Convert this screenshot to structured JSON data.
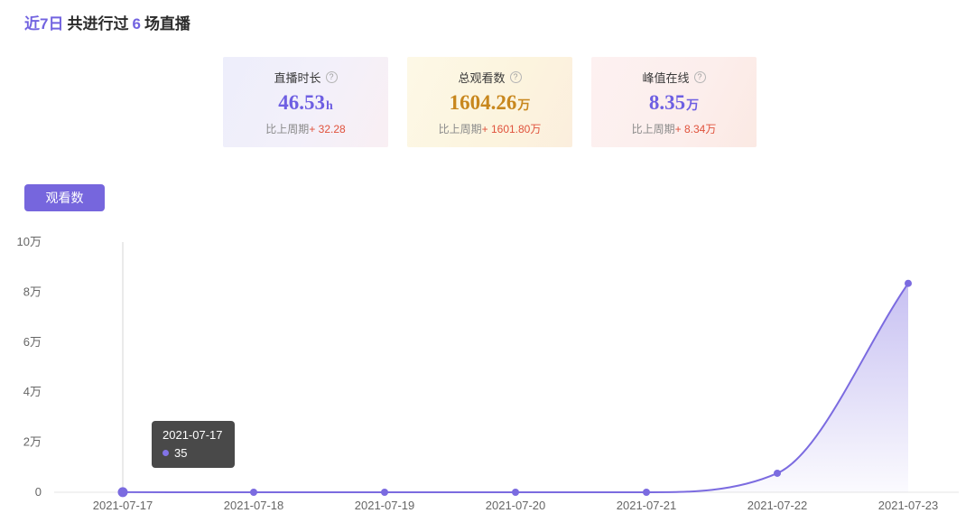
{
  "header": {
    "period": "近7日",
    "text_mid": "共进行过",
    "count": "6",
    "text_end": "场直播"
  },
  "icons": {
    "help": "?"
  },
  "colors": {
    "accent_purple": "#7666dd",
    "value_orange": "#c8871d",
    "compare_red": "#e0523c"
  },
  "cards": [
    {
      "title": "直播时长",
      "value": "46.53",
      "unit": "h",
      "compare_label": "比上周期",
      "compare_value": "+ 32.28"
    },
    {
      "title": "总观看数",
      "value": "1604.26",
      "unit": "万",
      "compare_label": "比上周期",
      "compare_value": "+ 1601.80万"
    },
    {
      "title": "峰值在线",
      "value": "8.35",
      "unit": "万",
      "compare_label": "比上周期",
      "compare_value": "+ 8.34万"
    }
  ],
  "tab": {
    "label": "观看数"
  },
  "tooltip": {
    "date": "2021-07-17",
    "value": "35"
  },
  "chart_data": {
    "type": "area",
    "title": "观看数",
    "x": [
      "2021-07-17",
      "2021-07-18",
      "2021-07-19",
      "2021-07-20",
      "2021-07-21",
      "2021-07-22",
      "2021-07-23"
    ],
    "series": [
      {
        "name": "观看数",
        "values": [
          35,
          0,
          0,
          0,
          0,
          7600,
          83500
        ]
      }
    ],
    "ylim": [
      0,
      100000
    ],
    "yticks": [
      "0",
      "2万",
      "4万",
      "6万",
      "8万",
      "10万"
    ],
    "ytick_values": [
      0,
      20000,
      40000,
      60000,
      80000,
      100000
    ],
    "line_color": "#7b6be0",
    "hover_index": 0,
    "grid": false,
    "legend": "none"
  }
}
